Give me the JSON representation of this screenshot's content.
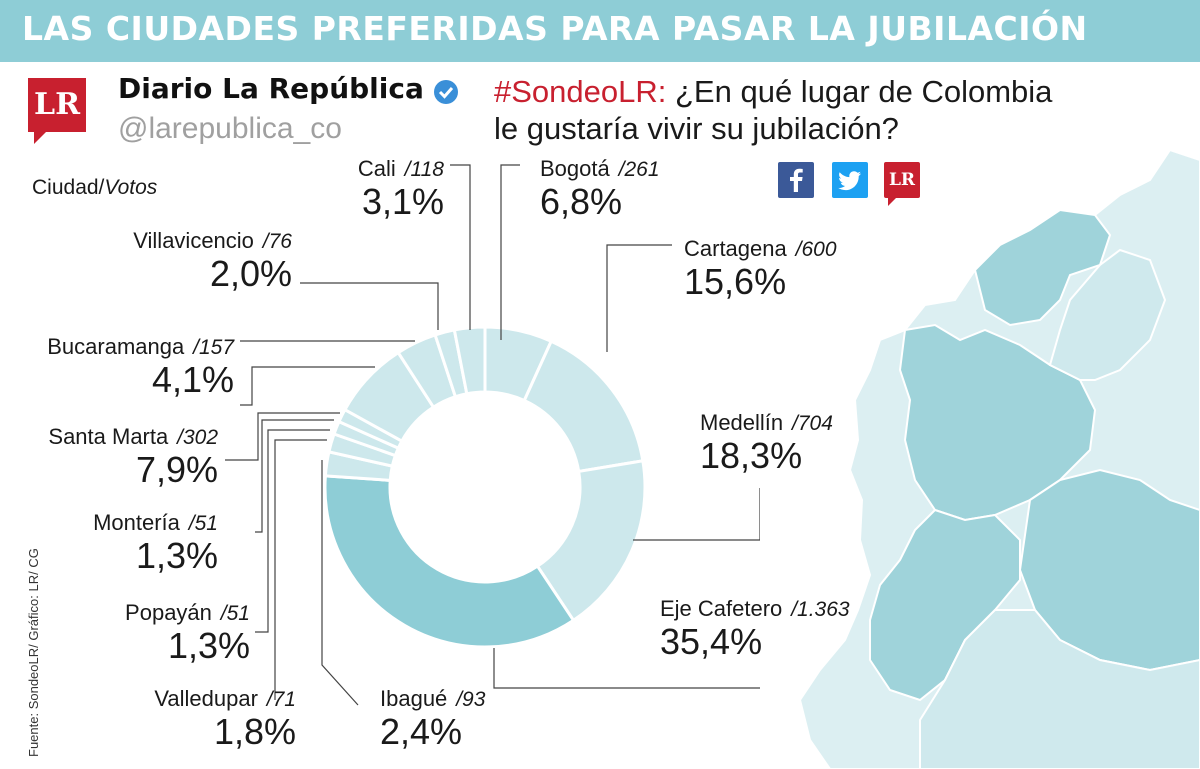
{
  "title": "LAS CIUDADES PREFERIDAS PARA PASAR LA JUBILACIÓN",
  "account": {
    "logo_text": "LR",
    "name": "Diario La República",
    "handle": "@larepublica_co"
  },
  "question": {
    "hashtag": "#SondeoLR:",
    "line1": "¿En qué lugar de Colombia",
    "line2": "le gustaría vivir su jubilación?"
  },
  "social": {
    "facebook": "facebook-icon",
    "twitter": "twitter-icon",
    "lr_text": "LR"
  },
  "legend": {
    "prefix": "Ciudad/",
    "suffix": "Votos"
  },
  "source": "Fuente: SondeoLR/ Gráfico: LR/ CG",
  "colors": {
    "header": "#8ecdd6",
    "dark_slice": "#8ecdd6",
    "light_slice": "#cde8ec",
    "brand_red": "#c8202f",
    "map_land": "#dceff2",
    "map_dark": "#9fd3da"
  },
  "chart_data": {
    "type": "pie",
    "donut": true,
    "title": "LAS CIUDADES PREFERIDAS PARA PASAR LA JUBILACIÓN",
    "unit": "Ciudad/Votos",
    "slices": [
      {
        "name": "Bogotá",
        "votes": "/261",
        "value": 261,
        "pct": "6,8%"
      },
      {
        "name": "Cartagena",
        "votes": "/600",
        "value": 600,
        "pct": "15,6%"
      },
      {
        "name": "Medellín",
        "votes": "/704",
        "value": 704,
        "pct": "18,3%"
      },
      {
        "name": "Eje Cafetero",
        "votes": "/1.363",
        "value": 1363,
        "pct": "35,4%"
      },
      {
        "name": "Ibagué",
        "votes": "/93",
        "value": 93,
        "pct": "2,4%"
      },
      {
        "name": "Valledupar",
        "votes": "/71",
        "value": 71,
        "pct": "1,8%"
      },
      {
        "name": "Popayán",
        "votes": "/51",
        "value": 51,
        "pct": "1,3%"
      },
      {
        "name": "Montería",
        "votes": "/51",
        "value": 51,
        "pct": "1,3%"
      },
      {
        "name": "Santa Marta",
        "votes": "/302",
        "value": 302,
        "pct": "7,9%"
      },
      {
        "name": "Bucaramanga",
        "votes": "/157",
        "value": 157,
        "pct": "4,1%"
      },
      {
        "name": "Villavicencio",
        "votes": "/76",
        "value": 76,
        "pct": "2,0%"
      },
      {
        "name": "Cali",
        "votes": "/118",
        "value": 118,
        "pct": "3,1%"
      }
    ]
  }
}
